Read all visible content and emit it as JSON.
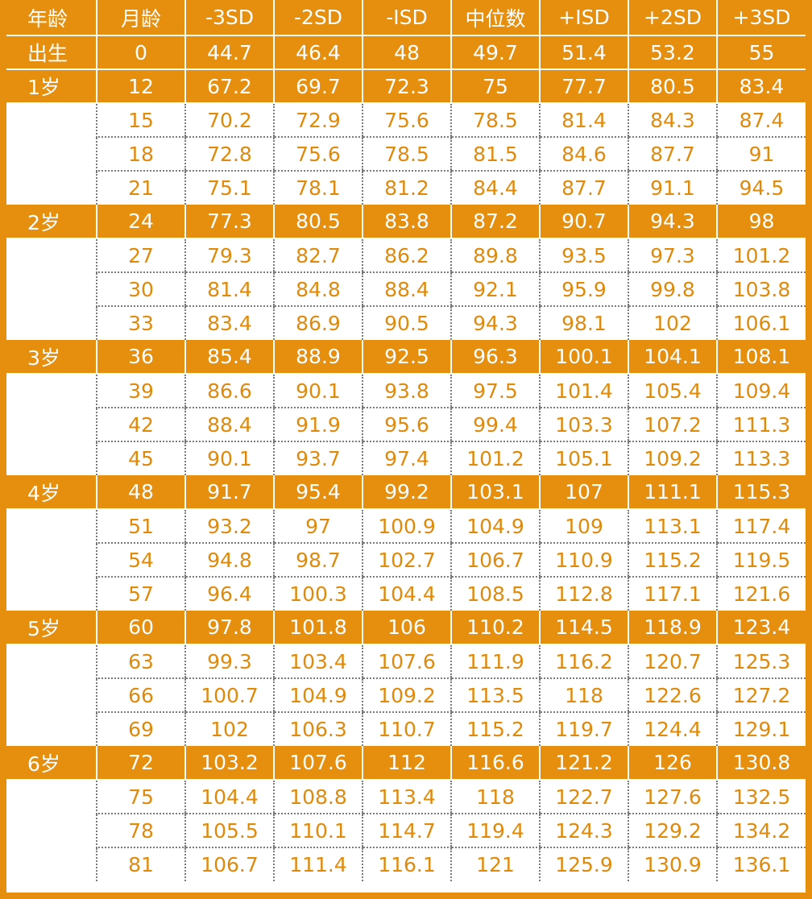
{
  "columns": [
    "年龄",
    "月龄",
    "-3SD",
    "-2SD",
    "-ISD",
    "中位数",
    "+ISD",
    "+2SD",
    "+3SD"
  ],
  "rows": [
    {
      "group": "出生",
      "month": "0",
      "values": [
        "44.7",
        "46.4",
        "48",
        "49.7",
        "51.4",
        "53.2",
        "55"
      ],
      "highlight": true
    },
    {
      "group": "1岁",
      "month": "12",
      "values": [
        "67.2",
        "69.7",
        "72.3",
        "75",
        "77.7",
        "80.5",
        "83.4"
      ],
      "highlight": true
    },
    {
      "group": "",
      "month": "15",
      "values": [
        "70.2",
        "72.9",
        "75.6",
        "78.5",
        "81.4",
        "84.3",
        "87.4"
      ],
      "highlight": false
    },
    {
      "group": "",
      "month": "18",
      "values": [
        "72.8",
        "75.6",
        "78.5",
        "81.5",
        "84.6",
        "87.7",
        "91"
      ],
      "highlight": false
    },
    {
      "group": "",
      "month": "21",
      "values": [
        "75.1",
        "78.1",
        "81.2",
        "84.4",
        "87.7",
        "91.1",
        "94.5"
      ],
      "highlight": false
    },
    {
      "group": "2岁",
      "month": "24",
      "values": [
        "77.3",
        "80.5",
        "83.8",
        "87.2",
        "90.7",
        "94.3",
        "98"
      ],
      "highlight": true
    },
    {
      "group": "",
      "month": "27",
      "values": [
        "79.3",
        "82.7",
        "86.2",
        "89.8",
        "93.5",
        "97.3",
        "101.2"
      ],
      "highlight": false
    },
    {
      "group": "",
      "month": "30",
      "values": [
        "81.4",
        "84.8",
        "88.4",
        "92.1",
        "95.9",
        "99.8",
        "103.8"
      ],
      "highlight": false
    },
    {
      "group": "",
      "month": "33",
      "values": [
        "83.4",
        "86.9",
        "90.5",
        "94.3",
        "98.1",
        "102",
        "106.1"
      ],
      "highlight": false
    },
    {
      "group": "3岁",
      "month": "36",
      "values": [
        "85.4",
        "88.9",
        "92.5",
        "96.3",
        "100.1",
        "104.1",
        "108.1"
      ],
      "highlight": true
    },
    {
      "group": "",
      "month": "39",
      "values": [
        "86.6",
        "90.1",
        "93.8",
        "97.5",
        "101.4",
        "105.4",
        "109.4"
      ],
      "highlight": false
    },
    {
      "group": "",
      "month": "42",
      "values": [
        "88.4",
        "91.9",
        "95.6",
        "99.4",
        "103.3",
        "107.2",
        "111.3"
      ],
      "highlight": false
    },
    {
      "group": "",
      "month": "45",
      "values": [
        "90.1",
        "93.7",
        "97.4",
        "101.2",
        "105.1",
        "109.2",
        "113.3"
      ],
      "highlight": false
    },
    {
      "group": "4岁",
      "month": "48",
      "values": [
        "91.7",
        "95.4",
        "99.2",
        "103.1",
        "107",
        "111.1",
        "115.3"
      ],
      "highlight": true
    },
    {
      "group": "",
      "month": "51",
      "values": [
        "93.2",
        "97",
        "100.9",
        "104.9",
        "109",
        "113.1",
        "117.4"
      ],
      "highlight": false
    },
    {
      "group": "",
      "month": "54",
      "values": [
        "94.8",
        "98.7",
        "102.7",
        "106.7",
        "110.9",
        "115.2",
        "119.5"
      ],
      "highlight": false
    },
    {
      "group": "",
      "month": "57",
      "values": [
        "96.4",
        "100.3",
        "104.4",
        "108.5",
        "112.8",
        "117.1",
        "121.6"
      ],
      "highlight": false
    },
    {
      "group": "5岁",
      "month": "60",
      "values": [
        "97.8",
        "101.8",
        "106",
        "110.2",
        "114.5",
        "118.9",
        "123.4"
      ],
      "highlight": true
    },
    {
      "group": "",
      "month": "63",
      "values": [
        "99.3",
        "103.4",
        "107.6",
        "111.9",
        "116.2",
        "120.7",
        "125.3"
      ],
      "highlight": false
    },
    {
      "group": "",
      "month": "66",
      "values": [
        "100.7",
        "104.9",
        "109.2",
        "113.5",
        "118",
        "122.6",
        "127.2"
      ],
      "highlight": false
    },
    {
      "group": "",
      "month": "69",
      "values": [
        "102",
        "106.3",
        "110.7",
        "115.2",
        "119.7",
        "124.4",
        "129.1"
      ],
      "highlight": false
    },
    {
      "group": "6岁",
      "month": "72",
      "values": [
        "103.2",
        "107.6",
        "112",
        "116.6",
        "121.2",
        "126",
        "130.8"
      ],
      "highlight": true
    },
    {
      "group": "",
      "month": "75",
      "values": [
        "104.4",
        "108.8",
        "113.4",
        "118",
        "122.7",
        "127.6",
        "132.5"
      ],
      "highlight": false
    },
    {
      "group": "",
      "month": "78",
      "values": [
        "105.5",
        "110.1",
        "114.7",
        "119.4",
        "124.3",
        "129.2",
        "134.2"
      ],
      "highlight": false
    },
    {
      "group": "",
      "month": "81",
      "values": [
        "106.7",
        "111.4",
        "116.1",
        "121",
        "125.9",
        "130.9",
        "136.1"
      ],
      "highlight": false
    }
  ],
  "colors": {
    "header_bg": "#e68e0e",
    "header_text": "#ffffff",
    "body_text": "#e08a0c",
    "frame": "#e68e0e"
  }
}
